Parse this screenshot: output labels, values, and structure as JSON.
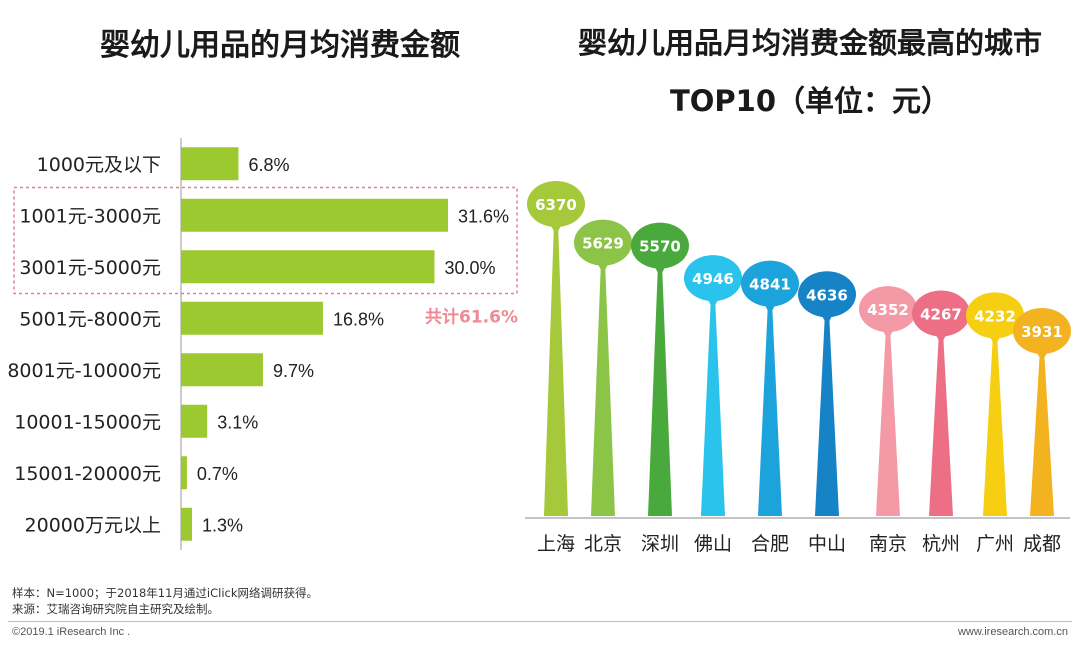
{
  "left_title": "婴幼儿用品的月均消费金额",
  "right_title_line1": "婴幼儿用品月均消费金额最高的城市",
  "right_title_line2": "TOP10（单位：元）",
  "total_label": "共计61.6%",
  "source_line1": "样本：N=1000；于2018年11月通过iClick网络调研获得。",
  "source_line2": "来源：艾瑞咨询研究院自主研究及绘制。",
  "copyright": "©2019.1 iResearch Inc .",
  "website": "www.iresearch.com.cn",
  "colors": {
    "bar": "#9cc92f",
    "highlight_box": "#e87f8f",
    "total_label": "#ef8a93"
  },
  "chart_data": [
    {
      "type": "bar",
      "orientation": "horizontal",
      "title": "婴幼儿用品的月均消费金额",
      "categories": [
        "1000元及以下",
        "1001元-3000元",
        "3001元-5000元",
        "5001元-8000元",
        "8001元-10000元",
        "10001-15000元",
        "15001-20000元",
        "20000万元以上"
      ],
      "values": [
        6.8,
        31.6,
        30.0,
        16.8,
        9.7,
        3.1,
        0.7,
        1.3
      ],
      "value_labels": [
        "6.8%",
        "31.6%",
        "30.0%",
        "16.8%",
        "9.7%",
        "3.1%",
        "0.7%",
        "1.3%"
      ],
      "unit": "%",
      "xlim": [
        0,
        35
      ],
      "highlighted_categories": [
        "1001元-3000元",
        "3001元-5000元"
      ],
      "annotation": "共计61.6%"
    },
    {
      "type": "bar",
      "style": "lollipop-pin",
      "title": "婴幼儿用品月均消费金额最高的城市TOP10（单位：元）",
      "categories": [
        "上海",
        "北京",
        "深圳",
        "佛山",
        "合肥",
        "中山",
        "南京",
        "杭州",
        "广州",
        "成都"
      ],
      "values": [
        6370,
        5629,
        5570,
        4946,
        4841,
        4636,
        4352,
        4267,
        4232,
        3931
      ],
      "ylim": [
        0,
        6370
      ],
      "colors": [
        "#a5c93a",
        "#8cc447",
        "#4aa93c",
        "#29c3ec",
        "#1da3dc",
        "#1683c6",
        "#f49aa6",
        "#ec6f85",
        "#f6cf12",
        "#f3b21f"
      ]
    }
  ]
}
